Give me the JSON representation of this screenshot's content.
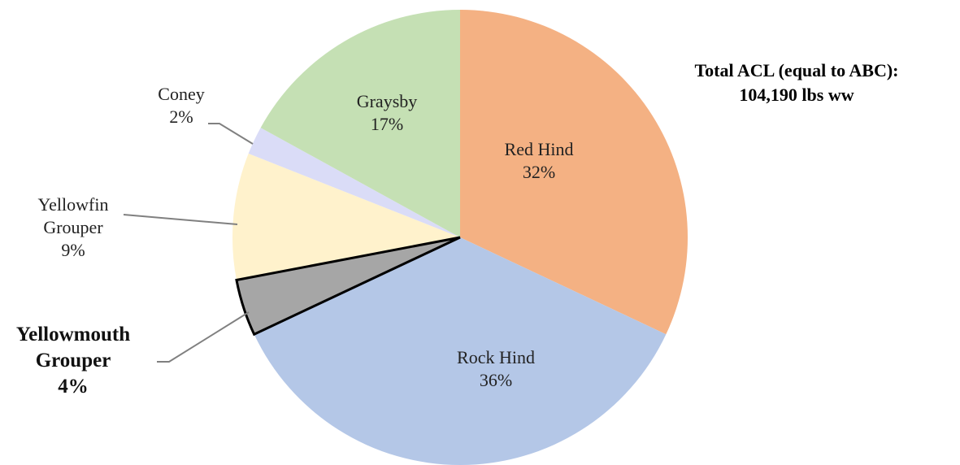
{
  "chart_data": {
    "type": "pie",
    "categories": [
      "Red Hind",
      "Rock Hind",
      "Yellowmouth Grouper",
      "Yellowfin Grouper",
      "Coney",
      "Graysby"
    ],
    "values": [
      32,
      36,
      4,
      9,
      2,
      17
    ],
    "value_labels": [
      "32%",
      "36%",
      "4%",
      "9%",
      "2%",
      "17%"
    ],
    "colors": [
      "#f4b183",
      "#b4c7e7",
      "#a6a6a6",
      "#fff2cc",
      "#dadcf7",
      "#c5e0b4"
    ],
    "highlight_index": 2,
    "annotation": [
      "Total ACL (equal to ABC):",
      "104,190 lbs ww"
    ]
  }
}
